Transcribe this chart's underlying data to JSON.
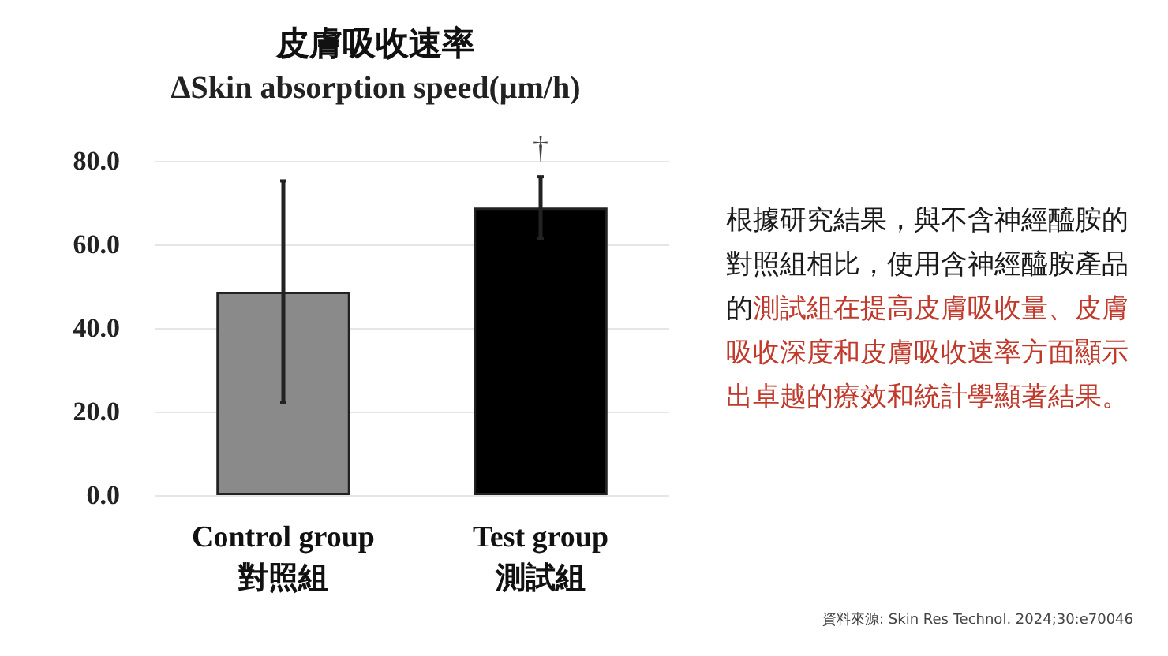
{
  "chart_data": {
    "type": "bar",
    "title": "皮膚吸收速率",
    "subtitle": "ΔSkin absorption speed(μm/h)",
    "categories": [
      "Control group\n對照組",
      "Test group\n測試組"
    ],
    "values": [
      48.7,
      68.8
    ],
    "errors": [
      26.5,
      7.4
    ],
    "colors": [
      "#8a8a8a",
      "#000000"
    ],
    "ylim": [
      0,
      80
    ],
    "yticks": [
      {
        "value": 0,
        "label": "0.0"
      },
      {
        "value": 20,
        "label": "20.0"
      },
      {
        "value": 40,
        "label": "40.0"
      },
      {
        "value": 60,
        "label": "60.0"
      },
      {
        "value": 80,
        "label": "80.0"
      }
    ],
    "grid": "y",
    "annotations": [
      "†",
      "根據研究結果，與不含神經醯胺的對照組相比，使用含神經醯胺產品的",
      "測試組在提高皮膚吸收量、皮膚吸收深度和皮膚吸收速率方面顯示出卓越的療效和統計學顯著結果。",
      "資料來源: Skin Res Technol. 2024;30:e70046"
    ]
  }
}
